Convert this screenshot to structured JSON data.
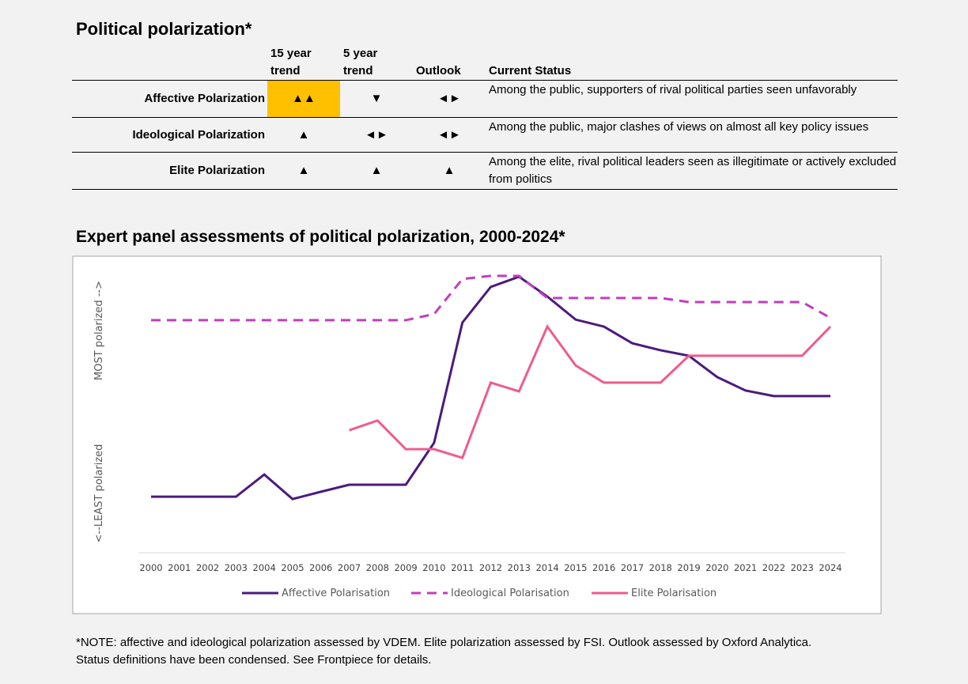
{
  "header": {
    "title": "Political polarization*"
  },
  "table": {
    "headers": [
      "15 year trend",
      "5 year trend",
      "Outlook",
      "Current Status"
    ],
    "rows": [
      {
        "label": "Affective Polarization",
        "trend15": "▲▲",
        "trend5": "▼",
        "outlook": "◄►",
        "status": "Among the public, supporters of rival political parties seen unfavorably"
      },
      {
        "label": "Ideological Polarization",
        "trend15": "▲",
        "trend5": "◄►",
        "outlook": "◄►",
        "status": "Among the public, major clashes of views on almost all key policy issues"
      },
      {
        "label": "Elite Polarization",
        "trend15": "▲",
        "trend5": "▲",
        "outlook": "▲",
        "status": "Among the elite, rival political leaders seen as illegitimate or actively excluded from politics"
      }
    ]
  },
  "chart_data": {
    "type": "line",
    "title": "Expert panel assessments of political polarization, 2000-2024*",
    "ylabels": [
      "<--LEAST polarized",
      "MOST polarized -->"
    ],
    "categories": [
      "2000",
      "2001",
      "2002",
      "2003",
      "2004",
      "2005",
      "2006",
      "2007",
      "2008",
      "2009",
      "2010",
      "2011",
      "2012",
      "2013",
      "2014",
      "2015",
      "2016",
      "2017",
      "2018",
      "2019",
      "2020",
      "2021",
      "2022",
      "2023",
      "2024"
    ],
    "ylim": [
      0,
      100
    ],
    "legend": "bottom",
    "series": [
      {
        "name": "Affective Polarisation",
        "color": "#4b1a7e",
        "style": "solid",
        "values": [
          19.2,
          19.2,
          19.2,
          19.2,
          26.8,
          18.4,
          20.9,
          23.3,
          23.3,
          23.3,
          37.7,
          78.9,
          91.1,
          94.6,
          87.8,
          79.9,
          77.5,
          71.8,
          69.4,
          67.5,
          60.2,
          55.6,
          53.7,
          53.7,
          53.7
        ]
      },
      {
        "name": "Ideological Polarisation",
        "color": "#c43cbf",
        "style": "dashed",
        "values": [
          79.7,
          79.7,
          79.7,
          79.7,
          79.7,
          79.7,
          79.7,
          79.7,
          79.7,
          79.7,
          81.8,
          93.8,
          94.9,
          94.9,
          87.3,
          87.3,
          87.3,
          87.3,
          87.3,
          85.9,
          85.9,
          85.9,
          85.9,
          85.9,
          80.5
        ]
      },
      {
        "name": "Elite Polarisation",
        "color": "#ef5b8d",
        "style": "solid",
        "values": [
          null,
          null,
          null,
          null,
          null,
          null,
          null,
          42.0,
          45.3,
          35.5,
          35.5,
          32.5,
          58.3,
          55.3,
          77.5,
          64.2,
          58.3,
          58.3,
          58.3,
          67.5,
          67.5,
          67.5,
          67.5,
          67.5,
          77.5
        ]
      }
    ]
  },
  "note": [
    "*NOTE: affective and ideological polarization assessed by VDEM. Elite polarization assessed by FSI. Outlook assessed by Oxford Analytica.",
    "Status definitions have been condensed. See Frontpiece for details."
  ]
}
